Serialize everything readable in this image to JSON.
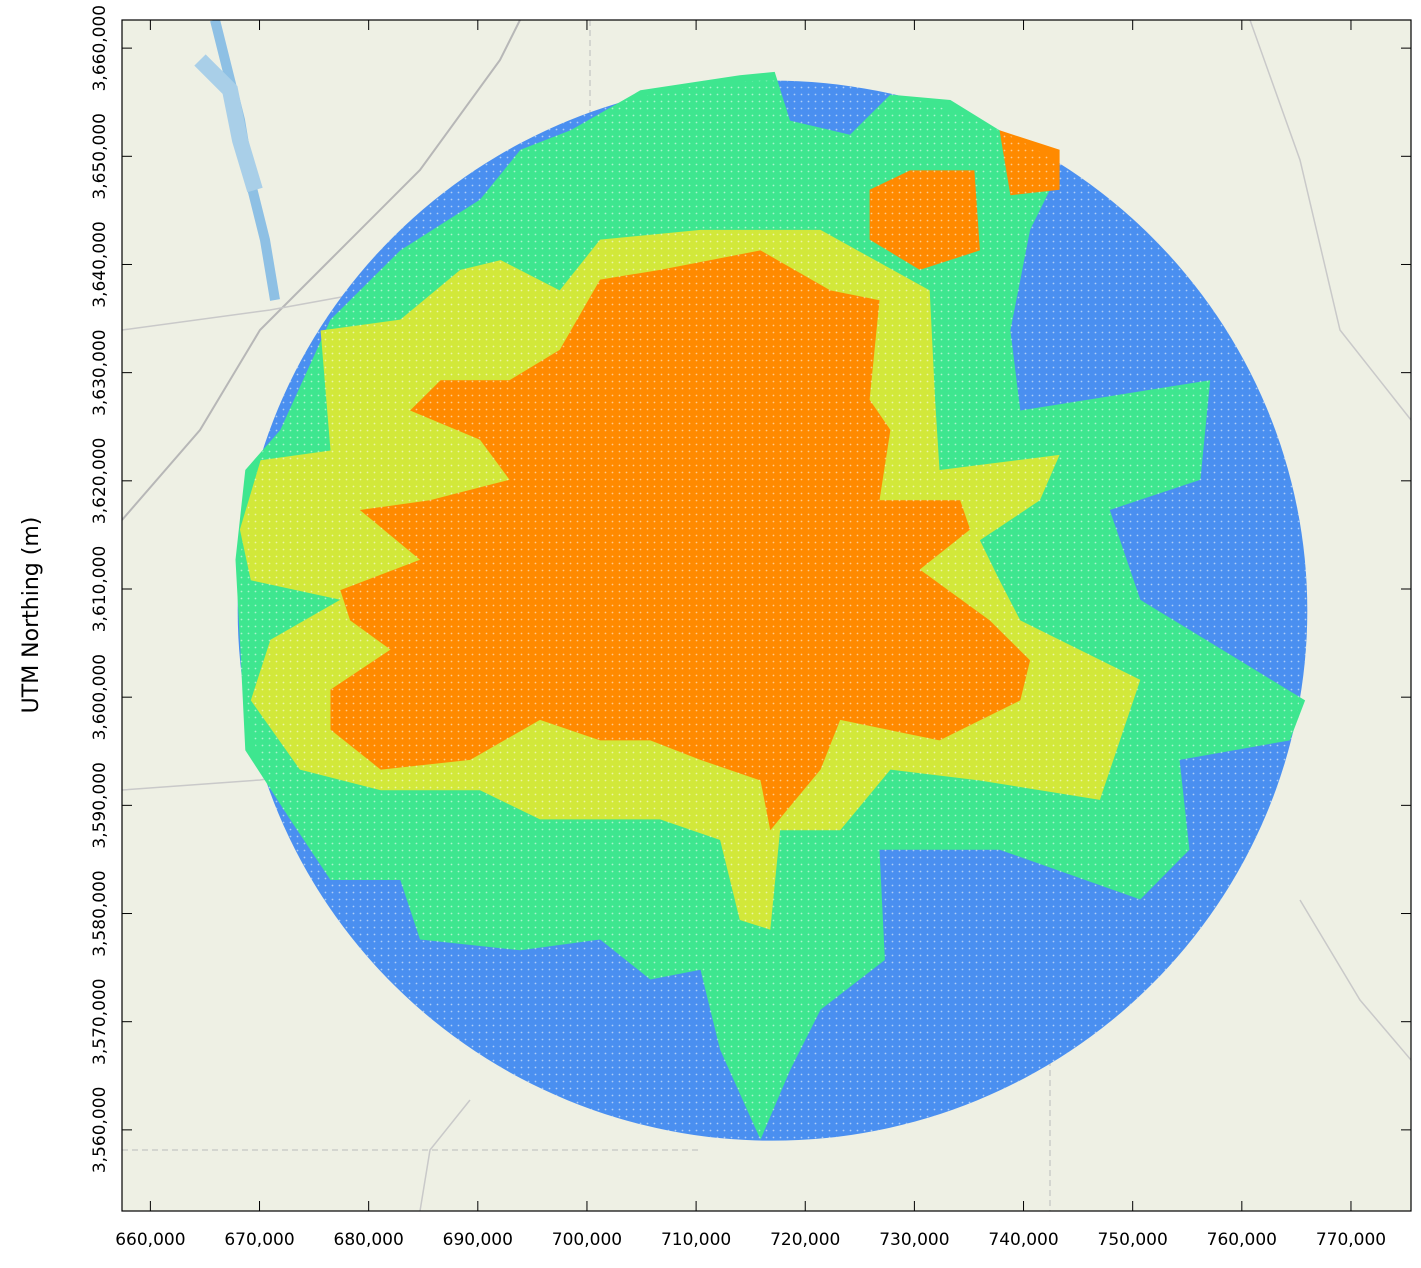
{
  "chart_data": {
    "type": "map",
    "y_label": "UTM Northing (m)",
    "xlim": [
      657400,
      775500
    ],
    "ylim": [
      3552500,
      3662600
    ],
    "xticks": [
      {
        "value": 660000,
        "label": "660,000"
      },
      {
        "value": 670000,
        "label": "670,000"
      },
      {
        "value": 680000,
        "label": "680,000"
      },
      {
        "value": 690000,
        "label": "690,000"
      },
      {
        "value": 700000,
        "label": "700,000"
      },
      {
        "value": 710000,
        "label": "710,000"
      },
      {
        "value": 720000,
        "label": "720,000"
      },
      {
        "value": 730000,
        "label": "730,000"
      },
      {
        "value": 740000,
        "label": "740,000"
      },
      {
        "value": 750000,
        "label": "750,000"
      },
      {
        "value": 760000,
        "label": "760,000"
      },
      {
        "value": 770000,
        "label": "770,000"
      }
    ],
    "yticks": [
      {
        "value": 3560000,
        "label": "3,560,000"
      },
      {
        "value": 3570000,
        "label": "3,570,000"
      },
      {
        "value": 3580000,
        "label": "3,580,000"
      },
      {
        "value": 3590000,
        "label": "3,590,000"
      },
      {
        "value": 3600000,
        "label": "3,600,000"
      },
      {
        "value": 3610000,
        "label": "3,610,000"
      },
      {
        "value": 3620000,
        "label": "3,620,000"
      },
      {
        "value": 3630000,
        "label": "3,630,000"
      },
      {
        "value": 3640000,
        "label": "3,640,000"
      },
      {
        "value": 3650000,
        "label": "3,650,000"
      },
      {
        "value": 3660000,
        "label": "3,660,000"
      }
    ],
    "receptor_domain": {
      "center_x": 717000,
      "center_y": 3608000,
      "radius": 49000,
      "color": "#4a8ff0"
    },
    "regions": [
      {
        "color": "#3ee68f",
        "x": [
          698500,
          704900,
          714000,
          717200,
          718600,
          724100,
          727800,
          733300,
          737800,
          743300,
          740600,
          738800,
          739700,
          757100,
          756200,
          747900,
          750700,
          759800,
          765800,
          764400,
          754300,
          755200,
          750700,
          737800,
          726800,
          727300,
          721400,
          718600,
          715900,
          712200,
          710400,
          705800,
          701200,
          693900,
          684700,
          682900,
          676500,
          672800,
          668700,
          668200,
          667800,
          668700,
          671900,
          676500,
          682900,
          690200,
          693900
        ],
        "y": [
          3652400,
          3656100,
          3657500,
          3657800,
          3653300,
          3652000,
          3655700,
          3655200,
          3652400,
          3648700,
          3643200,
          3633900,
          3626500,
          3629300,
          3620100,
          3617300,
          3609000,
          3603400,
          3599700,
          3596000,
          3594200,
          3585900,
          3581300,
          3585900,
          3585900,
          3575700,
          3571100,
          3565500,
          3559100,
          3567400,
          3574800,
          3573900,
          3577600,
          3576600,
          3577600,
          3583100,
          3583100,
          3588700,
          3595100,
          3605300,
          3612700,
          3621000,
          3624700,
          3634900,
          3641300,
          3646000,
          3650600
        ]
      },
      {
        "color": "#d2e83a",
        "x": [
          688400,
          692100,
          697500,
          701200,
          710400,
          721400,
          731400,
          731900,
          732300,
          743300,
          741500,
          736000,
          737800,
          739700,
          750700,
          747000,
          736000,
          727800,
          723200,
          717700,
          716800,
          714000,
          712200,
          706700,
          695700,
          690200,
          681100,
          673700,
          669200,
          671000,
          677400,
          669200,
          668200,
          670100,
          676500,
          675600,
          682900
        ],
        "y": [
          3639500,
          3640400,
          3637600,
          3642300,
          3643200,
          3643200,
          3637600,
          3627500,
          3621000,
          3622400,
          3618200,
          3614500,
          3610800,
          3607100,
          3601600,
          3590500,
          3592300,
          3593300,
          3587700,
          3587700,
          3578500,
          3579400,
          3586800,
          3588700,
          3588700,
          3591400,
          3591400,
          3593300,
          3599700,
          3605300,
          3609000,
          3610800,
          3615500,
          3621900,
          3622800,
          3633900,
          3634900
        ]
      },
      {
        "color": "#ff8a00",
        "x": [
          701200,
          706700,
          715900,
          722300,
          726800,
          725900,
          727800,
          726800,
          734200,
          735100,
          730500,
          736900,
          740600,
          739700,
          732300,
          723200,
          721400,
          716800,
          715900,
          710400,
          705800,
          701200,
          695700,
          689300,
          681100,
          676500,
          676500,
          682000,
          678300,
          677400,
          684700,
          679200,
          685600,
          692900,
          690200,
          683800,
          686600,
          692900,
          697500
        ],
        "y": [
          3638600,
          3639500,
          3641300,
          3637600,
          3636700,
          3627500,
          3624700,
          3618200,
          3618200,
          3615500,
          3611800,
          3607100,
          3603400,
          3599700,
          3596000,
          3597900,
          3593300,
          3587700,
          3592300,
          3594200,
          3596000,
          3596000,
          3597900,
          3594200,
          3593300,
          3597000,
          3600700,
          3604400,
          3607100,
          3609900,
          3612700,
          3617300,
          3618200,
          3620100,
          3623800,
          3626500,
          3629300,
          3629300,
          3632100
        ]
      },
      {
        "color": "#ff8a00",
        "x": [
          725900,
          729600,
          735500,
          736000,
          730500,
          725900
        ],
        "y": [
          3646900,
          3648700,
          3648700,
          3641300,
          3639500,
          3642300
        ]
      },
      {
        "color": "#ff8a00",
        "x": [
          737800,
          743300,
          743300,
          738800
        ],
        "y": [
          3652400,
          3650600,
          3646900,
          3646400
        ]
      }
    ]
  }
}
